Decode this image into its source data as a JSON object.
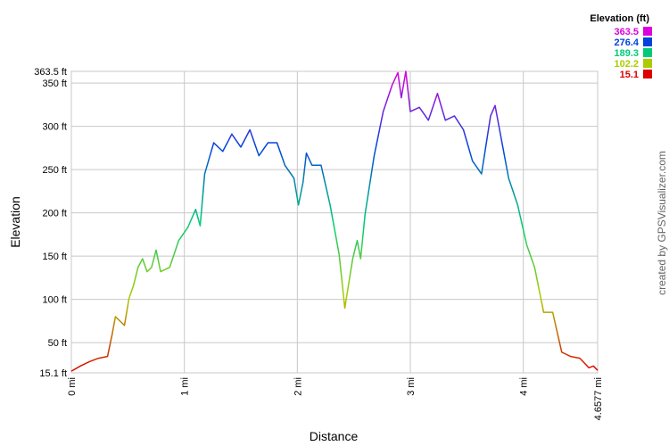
{
  "chart_data": {
    "type": "line",
    "x_label": "Distance",
    "y_label": "Elevation",
    "credit": "created by GPSVisualizer.com",
    "x": [
      0,
      0.08,
      0.16,
      0.24,
      0.32,
      0.36,
      0.39,
      0.43,
      0.47,
      0.51,
      0.55,
      0.59,
      0.63,
      0.67,
      0.71,
      0.75,
      0.79,
      0.87,
      0.95,
      1.03,
      1.1,
      1.14,
      1.18,
      1.26,
      1.34,
      1.42,
      1.5,
      1.58,
      1.66,
      1.74,
      1.82,
      1.89,
      1.97,
      2.01,
      2.05,
      2.08,
      2.13,
      2.21,
      2.29,
      2.37,
      2.42,
      2.49,
      2.53,
      2.56,
      2.6,
      2.68,
      2.76,
      2.84,
      2.89,
      2.92,
      2.96,
      3.0,
      3.08,
      3.16,
      3.24,
      3.31,
      3.39,
      3.47,
      3.55,
      3.63,
      3.71,
      3.75,
      3.79,
      3.87,
      3.95,
      4.03,
      4.1,
      4.18,
      4.26,
      4.34,
      4.42,
      4.5,
      4.58,
      4.62,
      4.6577
    ],
    "values": [
      17,
      23,
      28,
      32,
      34,
      59,
      80,
      75,
      70,
      101,
      116,
      137,
      147,
      132,
      137,
      157,
      132,
      137,
      168,
      183,
      204,
      185,
      245,
      281,
      271,
      291,
      276,
      296,
      266,
      281,
      281,
      255,
      240,
      209,
      235,
      269,
      255,
      255,
      209,
      152,
      90,
      147,
      168,
      147,
      199,
      266,
      317,
      348,
      362,
      333,
      363.5,
      317,
      322,
      307,
      338,
      307,
      312,
      296,
      260,
      245,
      312,
      324,
      296,
      240,
      209,
      163,
      137,
      85,
      85,
      39,
      34,
      32,
      21,
      23,
      18
    ],
    "xlim": [
      0,
      4.6577
    ],
    "ylim": [
      15.1,
      363.5
    ],
    "xticks": [
      {
        "value": 0,
        "label": "0 mi"
      },
      {
        "value": 1,
        "label": "1 mi"
      },
      {
        "value": 2,
        "label": "2 mi"
      },
      {
        "value": 3,
        "label": "3 mi"
      },
      {
        "value": 4,
        "label": "4 mi"
      },
      {
        "value": 4.6577,
        "label": "4.6577 mi"
      }
    ],
    "yticks": [
      {
        "value": 15.1,
        "label": "15.1 ft"
      },
      {
        "value": 50,
        "label": "50 ft"
      },
      {
        "value": 100,
        "label": "100 ft"
      },
      {
        "value": 150,
        "label": "150 ft"
      },
      {
        "value": 200,
        "label": "200 ft"
      },
      {
        "value": 250,
        "label": "250 ft"
      },
      {
        "value": 300,
        "label": "300 ft"
      },
      {
        "value": 350,
        "label": "350 ft"
      },
      {
        "value": 363.5,
        "label": "363.5 ft"
      }
    ],
    "grid": true,
    "legend": {
      "title": "Elevation (ft)",
      "items": [
        {
          "value": 363.5,
          "color": "#dd00dd"
        },
        {
          "value": 276.4,
          "color": "#0044dd"
        },
        {
          "value": 189.3,
          "color": "#00cc77"
        },
        {
          "value": 102.2,
          "color": "#aacc00"
        },
        {
          "value": 15.1,
          "color": "#dd0000"
        }
      ]
    }
  }
}
